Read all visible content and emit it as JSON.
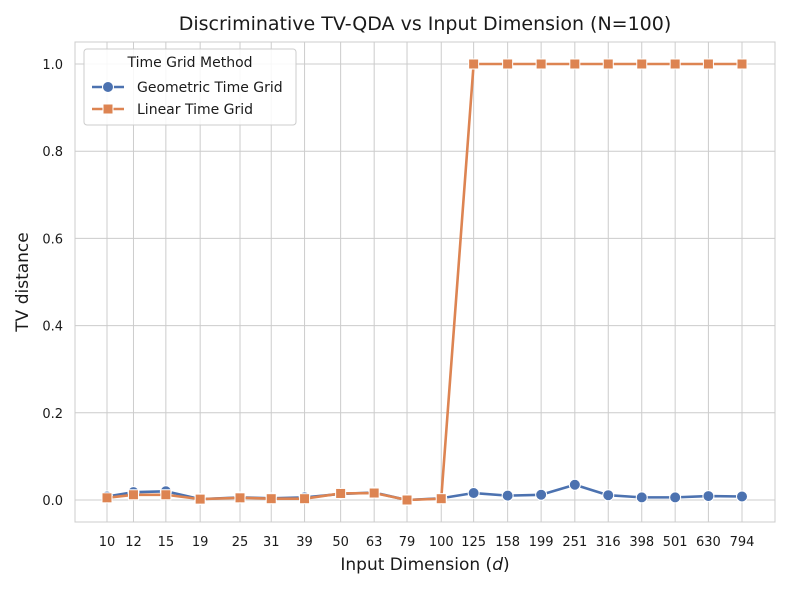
{
  "chart_data": {
    "type": "line",
    "title": "Discriminative TV-QDA vs Input Dimension (N=100)",
    "xlabel_prefix": "Input Dimension (",
    "xlabel_var": "d",
    "xlabel_suffix": ")",
    "ylabel": "TV distance",
    "x_scale": "log",
    "x": [
      10,
      12,
      15,
      19,
      25,
      31,
      39,
      50,
      63,
      79,
      100,
      125,
      158,
      199,
      251,
      316,
      398,
      501,
      630,
      794
    ],
    "xtick_labels": [
      "10",
      "12",
      "15",
      "19",
      "25",
      "31",
      "39",
      "50",
      "63",
      "79",
      "100",
      "125",
      "158",
      "199",
      "251",
      "316",
      "398",
      "501",
      "630",
      "794"
    ],
    "ylim": [
      -0.05,
      1.05
    ],
    "yticks": [
      0.0,
      0.2,
      0.4,
      0.6,
      0.8,
      1.0
    ],
    "ytick_labels": [
      "0.0",
      "0.2",
      "0.4",
      "0.6",
      "0.8",
      "1.0"
    ],
    "grid": true,
    "legend_title": "Time Grid Method",
    "legend_position": "top-left",
    "series": [
      {
        "name": "Geometric Time Grid",
        "color": "#4c72b0",
        "marker": "circle",
        "values": [
          0.008,
          0.018,
          0.02,
          0.002,
          0.006,
          0.004,
          0.006,
          0.014,
          0.017,
          0.0,
          0.004,
          0.016,
          0.01,
          0.012,
          0.035,
          0.011,
          0.006,
          0.006,
          0.009,
          0.008
        ]
      },
      {
        "name": "Linear Time Grid",
        "color": "#dd8452",
        "marker": "square",
        "values": [
          0.005,
          0.012,
          0.012,
          0.002,
          0.005,
          0.003,
          0.003,
          0.015,
          0.016,
          0.0,
          0.003,
          1.0,
          1.0,
          1.0,
          1.0,
          1.0,
          1.0,
          1.0,
          1.0,
          1.0
        ]
      }
    ]
  }
}
